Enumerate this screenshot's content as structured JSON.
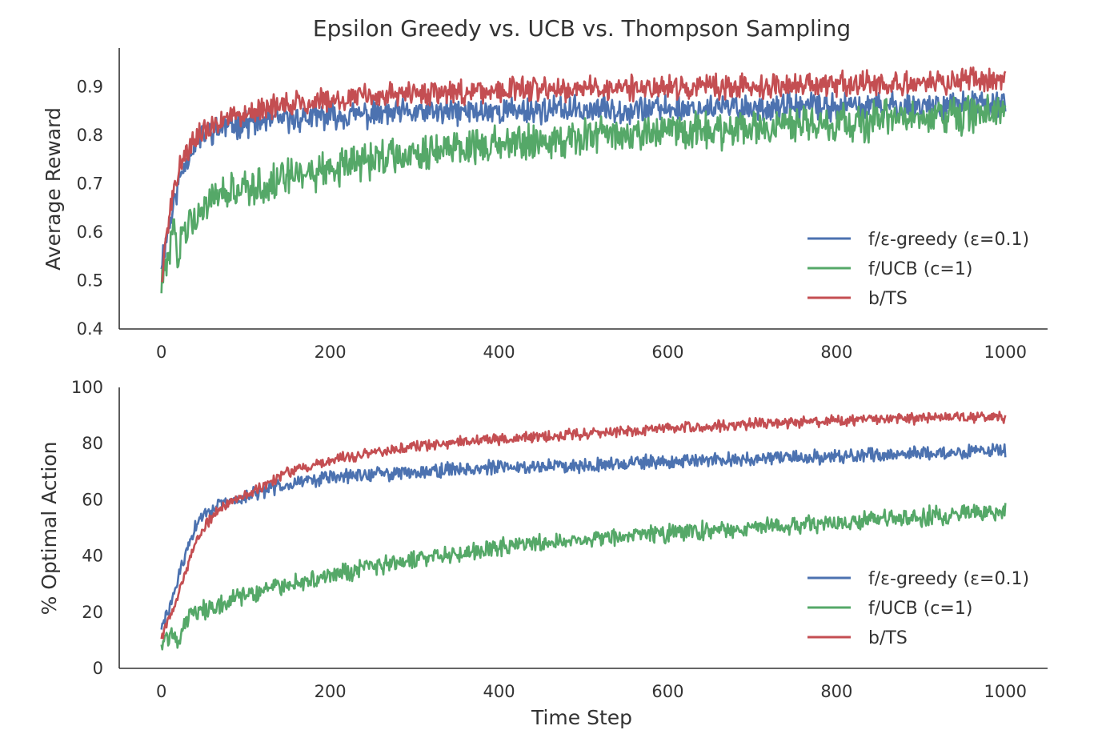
{
  "chart_data": [
    {
      "type": "line",
      "title": "Epsilon Greedy vs. UCB vs. Thompson Sampling",
      "xlabel": "",
      "ylabel": "Average Reward",
      "xlim": [
        -50,
        1050
      ],
      "ylim": [
        0.4,
        0.98
      ],
      "xticks": [
        0,
        200,
        400,
        600,
        800,
        1000
      ],
      "yticks": [
        0.4,
        0.5,
        0.6,
        0.7,
        0.8,
        0.9
      ],
      "grid": false,
      "legend_position": "lower-right",
      "series": [
        {
          "name": "f/ε-greedy (ε=0.1)",
          "color": "#4c72b0",
          "x": [
            0,
            5,
            10,
            15,
            20,
            25,
            30,
            35,
            40,
            45,
            50,
            60,
            70,
            80,
            90,
            100,
            120,
            140,
            160,
            180,
            200,
            250,
            300,
            350,
            400,
            450,
            500,
            550,
            600,
            650,
            700,
            750,
            800,
            850,
            900,
            950,
            1000
          ],
          "y": [
            0.54,
            0.58,
            0.62,
            0.66,
            0.7,
            0.73,
            0.75,
            0.77,
            0.78,
            0.79,
            0.8,
            0.81,
            0.815,
            0.82,
            0.822,
            0.825,
            0.828,
            0.832,
            0.835,
            0.837,
            0.84,
            0.843,
            0.846,
            0.848,
            0.85,
            0.852,
            0.853,
            0.854,
            0.855,
            0.856,
            0.857,
            0.858,
            0.859,
            0.86,
            0.861,
            0.862,
            0.865
          ],
          "noise": 0.022
        },
        {
          "name": "f/UCB (c=1)",
          "color": "#55a868",
          "x": [
            0,
            5,
            10,
            15,
            20,
            25,
            30,
            40,
            50,
            60,
            80,
            100,
            150,
            200,
            250,
            300,
            350,
            400,
            450,
            500,
            550,
            600,
            650,
            700,
            750,
            800,
            850,
            900,
            950,
            1000
          ],
          "y": [
            0.5,
            0.52,
            0.56,
            0.6,
            0.55,
            0.6,
            0.62,
            0.64,
            0.65,
            0.66,
            0.68,
            0.69,
            0.71,
            0.73,
            0.75,
            0.765,
            0.775,
            0.785,
            0.79,
            0.795,
            0.8,
            0.805,
            0.81,
            0.815,
            0.82,
            0.825,
            0.83,
            0.835,
            0.84,
            0.845
          ],
          "noise": 0.03
        },
        {
          "name": "b/TS",
          "color": "#c44e52",
          "x": [
            0,
            5,
            10,
            15,
            20,
            25,
            30,
            35,
            40,
            50,
            60,
            70,
            80,
            100,
            150,
            200,
            250,
            300,
            350,
            400,
            450,
            500,
            550,
            600,
            650,
            700,
            750,
            800,
            850,
            900,
            950,
            1000
          ],
          "y": [
            0.5,
            0.58,
            0.64,
            0.68,
            0.72,
            0.75,
            0.77,
            0.78,
            0.79,
            0.81,
            0.82,
            0.83,
            0.84,
            0.85,
            0.865,
            0.875,
            0.882,
            0.887,
            0.89,
            0.893,
            0.895,
            0.897,
            0.898,
            0.899,
            0.9,
            0.902,
            0.903,
            0.905,
            0.907,
            0.909,
            0.912,
            0.915
          ],
          "noise": 0.02
        }
      ]
    },
    {
      "type": "line",
      "title": "",
      "xlabel": "Time Step",
      "ylabel": "% Optimal Action",
      "xlim": [
        -50,
        1050
      ],
      "ylim": [
        0,
        100
      ],
      "xticks": [
        0,
        200,
        400,
        600,
        800,
        1000
      ],
      "yticks": [
        0,
        20,
        40,
        60,
        80,
        100
      ],
      "grid": false,
      "legend_position": "lower-right",
      "series": [
        {
          "name": "f/ε-greedy (ε=0.1)",
          "color": "#4c72b0",
          "x": [
            0,
            10,
            20,
            30,
            40,
            50,
            60,
            70,
            80,
            100,
            120,
            150,
            200,
            250,
            300,
            350,
            400,
            450,
            500,
            550,
            600,
            650,
            700,
            750,
            800,
            850,
            900,
            950,
            1000
          ],
          "y": [
            14,
            22,
            32,
            42,
            50,
            55,
            57,
            58,
            59,
            61,
            63,
            66,
            68,
            69,
            70,
            71,
            71.5,
            72,
            72.5,
            73,
            73.5,
            74,
            74.5,
            75,
            75.5,
            76,
            76.5,
            77,
            77.5
          ],
          "noise": 2.0
        },
        {
          "name": "f/UCB (c=1)",
          "color": "#55a868",
          "x": [
            0,
            10,
            20,
            30,
            40,
            50,
            60,
            80,
            100,
            150,
            200,
            250,
            300,
            350,
            400,
            450,
            500,
            550,
            600,
            650,
            700,
            750,
            800,
            850,
            900,
            950,
            1000
          ],
          "y": [
            9,
            12,
            10,
            18,
            20,
            21,
            22,
            24,
            26,
            30,
            33,
            36,
            39,
            41,
            43,
            44.5,
            46,
            47,
            48,
            49,
            50,
            51,
            52,
            53,
            54,
            55,
            56
          ],
          "noise": 2.6
        },
        {
          "name": "b/TS",
          "color": "#c44e52",
          "x": [
            0,
            10,
            20,
            30,
            40,
            50,
            60,
            70,
            80,
            100,
            120,
            150,
            200,
            250,
            300,
            350,
            400,
            450,
            500,
            550,
            600,
            650,
            700,
            750,
            800,
            850,
            900,
            950,
            1000
          ],
          "y": [
            11,
            18,
            26,
            36,
            44,
            50,
            54,
            57,
            59,
            62,
            65,
            70,
            74,
            77,
            79,
            80.5,
            81.5,
            82.5,
            83.5,
            84.5,
            85.5,
            86,
            87,
            87.5,
            88,
            88.5,
            89,
            89.5,
            89.5
          ],
          "noise": 1.5
        }
      ]
    }
  ]
}
